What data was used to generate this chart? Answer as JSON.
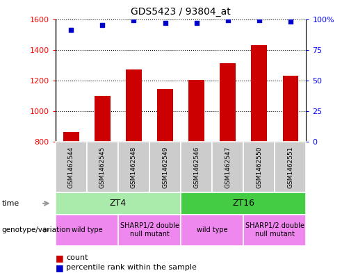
{
  "title": "GDS5423 / 93804_at",
  "samples": [
    "GSM1462544",
    "GSM1462545",
    "GSM1462548",
    "GSM1462549",
    "GSM1462546",
    "GSM1462547",
    "GSM1462550",
    "GSM1462551"
  ],
  "counts": [
    865,
    1100,
    1270,
    1145,
    1205,
    1315,
    1430,
    1230
  ],
  "percentiles": [
    91,
    95,
    99,
    97,
    97,
    99,
    99,
    98
  ],
  "ylim_left": [
    800,
    1600
  ],
  "ylim_right": [
    0,
    100
  ],
  "yticks_left": [
    800,
    1000,
    1200,
    1400,
    1600
  ],
  "yticks_right": [
    0,
    25,
    50,
    75,
    100
  ],
  "bar_color": "#cc0000",
  "scatter_color": "#0000cc",
  "time_groups": [
    {
      "label": "ZT4",
      "color": "#aaeaaa",
      "span": [
        0,
        4
      ]
    },
    {
      "label": "ZT16",
      "color": "#44cc44",
      "span": [
        4,
        8
      ]
    }
  ],
  "genotype_groups": [
    {
      "label": "wild type",
      "color": "#ee88ee",
      "span": [
        0,
        2
      ]
    },
    {
      "label": "SHARP1/2 double\nnull mutant",
      "color": "#ee88ee",
      "span": [
        2,
        4
      ]
    },
    {
      "label": "wild type",
      "color": "#ee88ee",
      "span": [
        4,
        6
      ]
    },
    {
      "label": "SHARP1/2 double\nnull mutant",
      "color": "#ee88ee",
      "span": [
        6,
        8
      ]
    }
  ],
  "sample_col_color": "#cccccc",
  "time_label": "time",
  "geno_label": "genotype/variation",
  "legend_count_label": "count",
  "legend_pct_label": "percentile rank within the sample",
  "arrow_color": "#999999"
}
